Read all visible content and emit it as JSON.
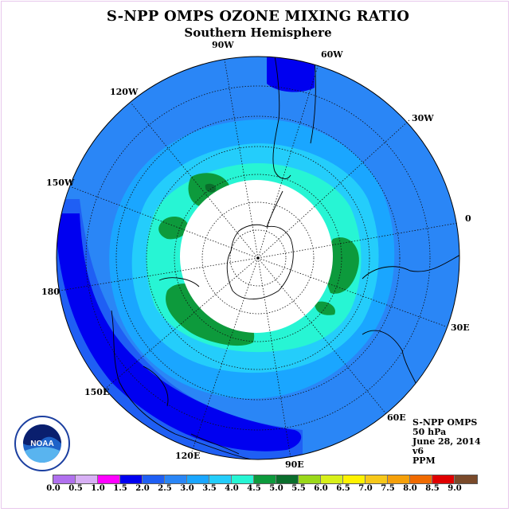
{
  "title": "S-NPP OMPS OZONE MIXING RATIO",
  "subtitle": "Southern Hemisphere",
  "longitude_labels": [
    "90W",
    "60W",
    "120W",
    "30W",
    "150W",
    "0",
    "180",
    "30E",
    "150E",
    "60E",
    "120E",
    "90E"
  ],
  "info": {
    "instrument": "S-NPP OMPS",
    "level": "50 hPa",
    "date": "June 28, 2014",
    "version": "v6",
    "units": "PPM"
  },
  "logo": {
    "name": "NOAA"
  },
  "colorbar": {
    "ticks": [
      "0.0",
      "0.5",
      "1.0",
      "1.5",
      "2.0",
      "2.5",
      "3.0",
      "3.5",
      "4.0",
      "4.5",
      "5.0",
      "5.5",
      "6.0",
      "6.5",
      "7.0",
      "7.5",
      "8.0",
      "8.5",
      "9.0"
    ],
    "colors": [
      "#b070ee",
      "#d8b0f5",
      "#ff00ff",
      "#0000f0",
      "#1f5ff4",
      "#2a86f6",
      "#1aa6ff",
      "#24cdfb",
      "#27f5d4",
      "#0d9a3c",
      "#0a6e2c",
      "#9ad81a",
      "#d8f01a",
      "#fff200",
      "#f7c81a",
      "#f5a00a",
      "#f06a00",
      "#e00000",
      "#7a4a2a"
    ]
  },
  "colors": {
    "deep_blue": "#0000f0",
    "blue_2_0": "#1f5ff4",
    "blue_2_5": "#2a86f6",
    "cyan_3_0": "#1aa6ff",
    "cyan_3_5": "#24cdfb",
    "aqua_4_0": "#27f5d4",
    "green_4_5": "#0d9a3c",
    "green_5_0": "#0a6e2c"
  }
}
